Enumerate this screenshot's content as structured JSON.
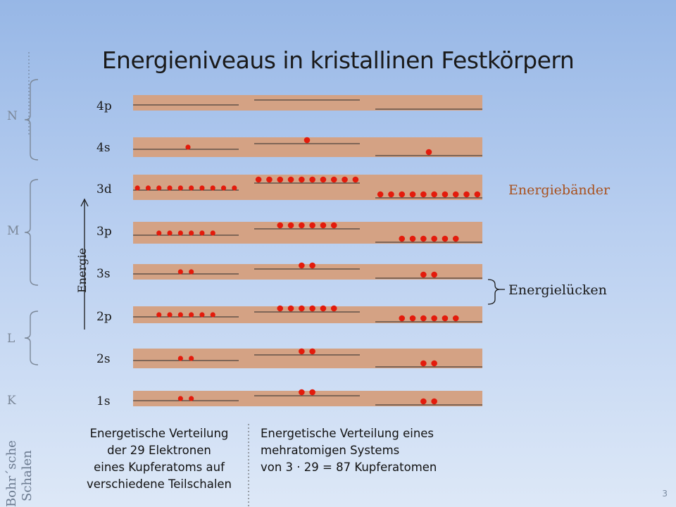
{
  "title": "Energieniveaus in kristallinen Festkörpern",
  "axis_label": "Energie",
  "levels": [
    {
      "name": "4p",
      "electrons": [
        0,
        0,
        0
      ]
    },
    {
      "name": "4s",
      "electrons": [
        1,
        1,
        1
      ]
    },
    {
      "name": "3d",
      "electrons": [
        10,
        10,
        10
      ]
    },
    {
      "name": "3p",
      "electrons": [
        6,
        6,
        6
      ]
    },
    {
      "name": "3s",
      "electrons": [
        2,
        2,
        2
      ]
    },
    {
      "name": "2p",
      "electrons": [
        6,
        6,
        6
      ]
    },
    {
      "name": "2s",
      "electrons": [
        2,
        2,
        2
      ]
    },
    {
      "name": "1s",
      "electrons": [
        2,
        2,
        2
      ]
    }
  ],
  "shells": [
    {
      "label": "N",
      "levels": [
        "4p",
        "4s"
      ]
    },
    {
      "label": "M",
      "levels": [
        "3d",
        "3p",
        "3s"
      ]
    },
    {
      "label": "L",
      "levels": [
        "2p",
        "2s"
      ]
    },
    {
      "label": "K",
      "levels": [
        "1s"
      ]
    }
  ],
  "annotations": {
    "bands": "Energiebänder",
    "gaps": "Energielücken"
  },
  "caption_left": [
    "Energetische Verteilung",
    "der 29 Elektronen",
    "eines Kupferatoms auf",
    "verschiedene Teilschalen"
  ],
  "caption_right": [
    "Energetische Verteilung eines",
    "mehratomigen Systems",
    "von 3 · 29 = 87 Kupferatomen"
  ],
  "bohr_label": [
    "Bohr´sche",
    "Schalen"
  ],
  "page_number": "3",
  "colors": {
    "band": "#d4a284",
    "electron": "#e31b0c",
    "bands_label": "#a8501d",
    "shell_label": "#7b8797"
  }
}
